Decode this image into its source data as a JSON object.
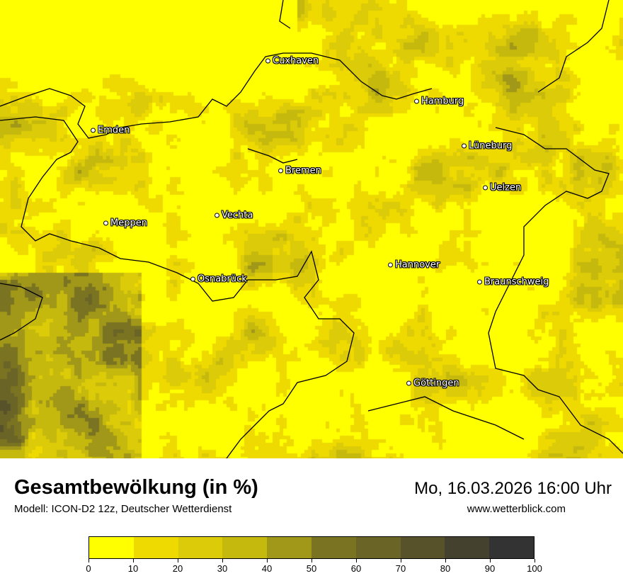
{
  "title": "Gesamtbewölkung (in %)",
  "subtitle": "Modell: ICON-D2 12z, Deutscher Wetterdienst",
  "datetime": "Mo, 16.03.2026 16:00 Uhr",
  "website": "www.wetterblick.com",
  "legend": {
    "ticks": [
      "0",
      "10",
      "20",
      "30",
      "40",
      "50",
      "60",
      "70",
      "80",
      "90",
      "100"
    ],
    "colors": [
      "#ffff00",
      "#eed900",
      "#dbcb08",
      "#c6b90e",
      "#a19718",
      "#7a7322",
      "#6a6426",
      "#57522a",
      "#44412f",
      "#333333"
    ]
  },
  "cities": [
    {
      "name": "Cuxhaven"
    },
    {
      "name": "Hamburg"
    },
    {
      "name": "Emden"
    },
    {
      "name": "Lüneburg"
    },
    {
      "name": "Bremen"
    },
    {
      "name": "Uelzen"
    },
    {
      "name": "Vechta"
    },
    {
      "name": "Meppen"
    },
    {
      "name": "Hannover"
    },
    {
      "name": "Osnabrück"
    },
    {
      "name": "Braunschweig"
    },
    {
      "name": "Göttingen"
    }
  ]
}
